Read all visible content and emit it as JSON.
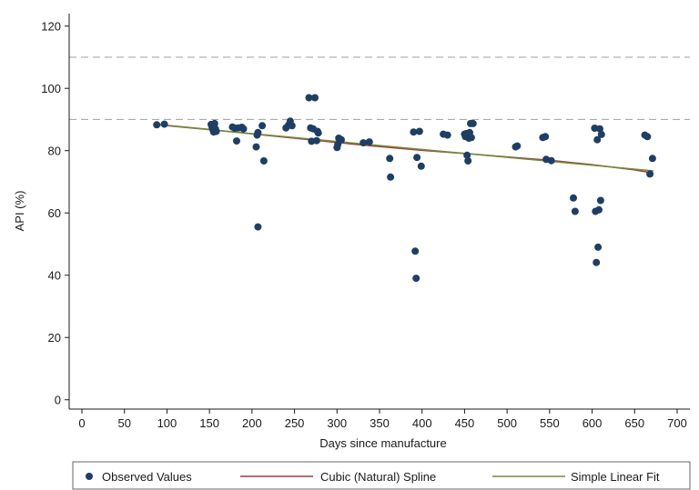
{
  "chart_data": {
    "type": "scatter",
    "title": "",
    "xlabel": "Days since manufacture",
    "ylabel": "API (%)",
    "xlim": [
      -15,
      715
    ],
    "ylim": [
      -3,
      124
    ],
    "xticks": [
      0,
      50,
      100,
      150,
      200,
      250,
      300,
      350,
      400,
      450,
      500,
      550,
      600,
      650,
      700
    ],
    "yticks": [
      0,
      20,
      40,
      60,
      80,
      100,
      120
    ],
    "reference_lines": [
      {
        "y": 110,
        "style": "dashed",
        "color": "#aaaaaa"
      },
      {
        "y": 90,
        "style": "dashed",
        "color": "#aaaaaa"
      }
    ],
    "grid": false,
    "legend_position": "bottom",
    "colors": {
      "points": "#1f3e63",
      "spline": "#a8383b",
      "linear": "#6e8b3d"
    },
    "series": [
      {
        "name": "Observed Values",
        "type": "scatter",
        "points": [
          [
            88,
            88.3
          ],
          [
            97,
            88.5
          ],
          [
            152,
            88.4
          ],
          [
            153,
            87.6
          ],
          [
            154,
            86.8
          ],
          [
            155,
            86.0
          ],
          [
            157,
            87.0
          ],
          [
            158,
            86.2
          ],
          [
            156,
            88.7
          ],
          [
            177,
            87.6
          ],
          [
            180,
            87.2
          ],
          [
            182,
            83.1
          ],
          [
            184,
            87.3
          ],
          [
            188,
            87.5
          ],
          [
            190,
            87.0
          ],
          [
            205,
            81.2
          ],
          [
            206,
            85.0
          ],
          [
            207,
            85.8
          ],
          [
            207,
            55.5
          ],
          [
            212,
            88.0
          ],
          [
            214,
            76.7
          ],
          [
            240,
            87.3
          ],
          [
            243,
            88.2
          ],
          [
            245,
            89.5
          ],
          [
            247,
            88.0
          ],
          [
            267,
            97.0
          ],
          [
            269,
            87.3
          ],
          [
            270,
            83.0
          ],
          [
            272,
            87.0
          ],
          [
            274,
            97.0
          ],
          [
            276,
            83.2
          ],
          [
            277,
            86.2
          ],
          [
            278,
            85.7
          ],
          [
            300,
            81.0
          ],
          [
            301,
            82.0
          ],
          [
            302,
            84.0
          ],
          [
            305,
            83.5
          ],
          [
            331,
            82.5
          ],
          [
            338,
            82.8
          ],
          [
            362,
            77.5
          ],
          [
            363,
            71.5
          ],
          [
            390,
            86.0
          ],
          [
            392,
            47.7
          ],
          [
            393,
            39.0
          ],
          [
            394,
            77.8
          ],
          [
            397,
            86.2
          ],
          [
            399,
            75.0
          ],
          [
            425,
            85.3
          ],
          [
            430,
            85.0
          ],
          [
            450,
            85.3
          ],
          [
            451,
            84.5
          ],
          [
            452,
            85.5
          ],
          [
            453,
            78.5
          ],
          [
            454,
            76.7
          ],
          [
            455,
            84.0
          ],
          [
            456,
            85.8
          ],
          [
            457,
            88.7
          ],
          [
            458,
            84.2
          ],
          [
            460,
            88.7
          ],
          [
            510,
            81.2
          ],
          [
            512,
            81.5
          ],
          [
            542,
            84.2
          ],
          [
            545,
            84.5
          ],
          [
            546,
            77.2
          ],
          [
            552,
            76.8
          ],
          [
            578,
            64.8
          ],
          [
            580,
            60.5
          ],
          [
            603,
            87.2
          ],
          [
            604,
            60.5
          ],
          [
            605,
            44.1
          ],
          [
            606,
            83.5
          ],
          [
            607,
            49.0
          ],
          [
            608,
            61.0
          ],
          [
            609,
            87.0
          ],
          [
            610,
            64.0
          ],
          [
            611,
            85.2
          ],
          [
            662,
            85.0
          ],
          [
            665,
            84.5
          ],
          [
            668,
            72.5
          ],
          [
            671,
            77.5
          ]
        ]
      },
      {
        "name": "Cubic (Natural) Spline",
        "type": "line",
        "x": [
          88,
          150,
          200,
          250,
          300,
          350,
          400,
          450,
          500,
          550,
          600,
          650,
          672
        ],
        "y": [
          88.4,
          86.8,
          85.4,
          84.0,
          82.6,
          81.3,
          80.1,
          79.1,
          78.0,
          76.9,
          75.5,
          73.8,
          72.8
        ]
      },
      {
        "name": "Simple Linear Fit",
        "type": "line",
        "x": [
          88,
          672
        ],
        "y": [
          88.3,
          73.5
        ]
      }
    ]
  }
}
